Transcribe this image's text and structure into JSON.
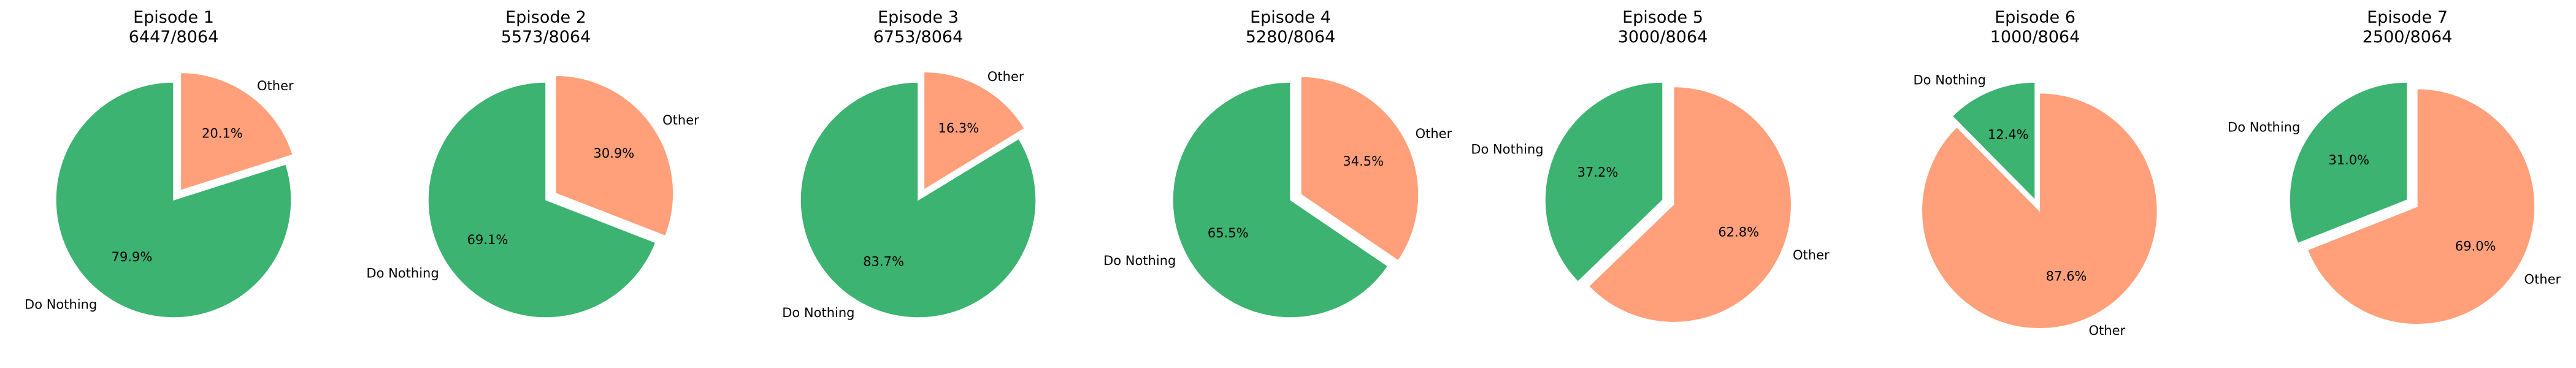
{
  "colors": {
    "Do Nothing": "#3cb371",
    "Other": "#ffa07a"
  },
  "chart_data": [
    {
      "type": "pie",
      "title": "Episode 1",
      "subtitle": "6447/8064",
      "startangle": 90,
      "explode": {
        "Other": 0.1
      },
      "slices": [
        {
          "label": "Do Nothing",
          "value": 79.9,
          "pct_label": "79.9%"
        },
        {
          "label": "Other",
          "value": 20.1,
          "pct_label": "20.1%"
        }
      ]
    },
    {
      "type": "pie",
      "title": "Episode 2",
      "subtitle": "5573/8064",
      "startangle": 90,
      "explode": {
        "Other": 0.1
      },
      "slices": [
        {
          "label": "Do Nothing",
          "value": 69.1,
          "pct_label": "69.1%"
        },
        {
          "label": "Other",
          "value": 30.9,
          "pct_label": "30.9%"
        }
      ]
    },
    {
      "type": "pie",
      "title": "Episode 3",
      "subtitle": "6753/8064",
      "startangle": 90,
      "explode": {
        "Other": 0.1
      },
      "slices": [
        {
          "label": "Do Nothing",
          "value": 83.7,
          "pct_label": "83.7%"
        },
        {
          "label": "Other",
          "value": 16.3,
          "pct_label": "16.3%"
        }
      ]
    },
    {
      "type": "pie",
      "title": "Episode 4",
      "subtitle": "5280/8064",
      "startangle": 90,
      "explode": {
        "Other": 0.1
      },
      "slices": [
        {
          "label": "Do Nothing",
          "value": 65.5,
          "pct_label": "65.5%"
        },
        {
          "label": "Other",
          "value": 34.5,
          "pct_label": "34.5%"
        }
      ]
    },
    {
      "type": "pie",
      "title": "Episode 5",
      "subtitle": "3000/8064",
      "startangle": 90,
      "explode": {
        "Other": 0.1
      },
      "slices": [
        {
          "label": "Do Nothing",
          "value": 37.2,
          "pct_label": "37.2%"
        },
        {
          "label": "Other",
          "value": 62.8,
          "pct_label": "62.8%"
        }
      ]
    },
    {
      "type": "pie",
      "title": "Episode 6",
      "subtitle": "1000/8064",
      "startangle": 90,
      "explode": {
        "Other": 0.1
      },
      "slices": [
        {
          "label": "Do Nothing",
          "value": 12.4,
          "pct_label": "12.4%"
        },
        {
          "label": "Other",
          "value": 87.6,
          "pct_label": "87.6%"
        }
      ]
    },
    {
      "type": "pie",
      "title": "Episode 7",
      "subtitle": "2500/8064",
      "startangle": 90,
      "explode": {
        "Other": 0.1
      },
      "slices": [
        {
          "label": "Do Nothing",
          "value": 31.0,
          "pct_label": "31.0%"
        },
        {
          "label": "Other",
          "value": 69.0,
          "pct_label": "69.0%"
        }
      ]
    }
  ]
}
